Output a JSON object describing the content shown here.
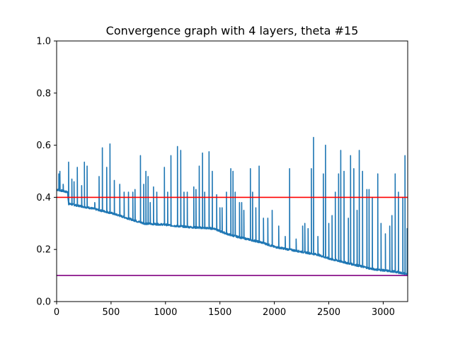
{
  "chart_data": {
    "type": "line",
    "title": "Convergence graph with 4 layers, theta #15",
    "xlabel": "",
    "ylabel": "",
    "xlim": [
      0,
      3225
    ],
    "ylim": [
      0.0,
      1.0
    ],
    "x_ticks": [
      0,
      500,
      1000,
      1500,
      2000,
      2500,
      3000
    ],
    "y_ticks": [
      0.0,
      0.2,
      0.4,
      0.6,
      0.8,
      1.0
    ],
    "x_tick_labels": [
      "0",
      "500",
      "1000",
      "1500",
      "2000",
      "2500",
      "3000"
    ],
    "y_tick_labels": [
      "0.0",
      "0.2",
      "0.4",
      "0.6",
      "0.8",
      "1.0"
    ],
    "grid": false,
    "legend": "none",
    "baseline": {
      "description": "stepwise-decreasing lower envelope of the convergence curve",
      "points": [
        [
          0,
          0.43
        ],
        [
          100,
          0.42
        ],
        [
          110,
          0.375
        ],
        [
          300,
          0.36
        ],
        [
          500,
          0.34
        ],
        [
          650,
          0.32
        ],
        [
          800,
          0.3
        ],
        [
          1000,
          0.295
        ],
        [
          1100,
          0.29
        ],
        [
          1250,
          0.285
        ],
        [
          1450,
          0.28
        ],
        [
          1500,
          0.27
        ],
        [
          1600,
          0.255
        ],
        [
          1700,
          0.245
        ],
        [
          1800,
          0.235
        ],
        [
          1900,
          0.225
        ],
        [
          2000,
          0.21
        ],
        [
          2200,
          0.195
        ],
        [
          2400,
          0.18
        ],
        [
          2500,
          0.165
        ],
        [
          2700,
          0.145
        ],
        [
          2900,
          0.125
        ],
        [
          3100,
          0.115
        ],
        [
          3225,
          0.105
        ]
      ]
    },
    "spikes": [
      [
        20,
        0.49
      ],
      [
        30,
        0.5
      ],
      [
        60,
        0.45
      ],
      [
        110,
        0.535
      ],
      [
        140,
        0.47
      ],
      [
        160,
        0.46
      ],
      [
        190,
        0.515
      ],
      [
        230,
        0.445
      ],
      [
        255,
        0.535
      ],
      [
        280,
        0.52
      ],
      [
        350,
        0.38
      ],
      [
        390,
        0.48
      ],
      [
        420,
        0.59
      ],
      [
        460,
        0.515
      ],
      [
        490,
        0.605
      ],
      [
        530,
        0.465
      ],
      [
        580,
        0.45
      ],
      [
        620,
        0.42
      ],
      [
        660,
        0.42
      ],
      [
        700,
        0.42
      ],
      [
        720,
        0.43
      ],
      [
        770,
        0.56
      ],
      [
        800,
        0.45
      ],
      [
        820,
        0.5
      ],
      [
        840,
        0.48
      ],
      [
        860,
        0.38
      ],
      [
        890,
        0.44
      ],
      [
        920,
        0.42
      ],
      [
        990,
        0.515
      ],
      [
        1020,
        0.42
      ],
      [
        1050,
        0.56
      ],
      [
        1110,
        0.595
      ],
      [
        1140,
        0.58
      ],
      [
        1170,
        0.42
      ],
      [
        1200,
        0.42
      ],
      [
        1260,
        0.44
      ],
      [
        1280,
        0.43
      ],
      [
        1310,
        0.52
      ],
      [
        1340,
        0.57
      ],
      [
        1360,
        0.42
      ],
      [
        1400,
        0.575
      ],
      [
        1430,
        0.5
      ],
      [
        1470,
        0.41
      ],
      [
        1500,
        0.36
      ],
      [
        1520,
        0.36
      ],
      [
        1560,
        0.42
      ],
      [
        1600,
        0.51
      ],
      [
        1620,
        0.5
      ],
      [
        1640,
        0.42
      ],
      [
        1680,
        0.38
      ],
      [
        1700,
        0.38
      ],
      [
        1720,
        0.35
      ],
      [
        1780,
        0.51
      ],
      [
        1800,
        0.42
      ],
      [
        1830,
        0.36
      ],
      [
        1860,
        0.52
      ],
      [
        1900,
        0.32
      ],
      [
        1940,
        0.32
      ],
      [
        1980,
        0.35
      ],
      [
        2040,
        0.29
      ],
      [
        2100,
        0.25
      ],
      [
        2140,
        0.51
      ],
      [
        2200,
        0.24
      ],
      [
        2260,
        0.29
      ],
      [
        2280,
        0.3
      ],
      [
        2310,
        0.28
      ],
      [
        2340,
        0.51
      ],
      [
        2360,
        0.63
      ],
      [
        2400,
        0.25
      ],
      [
        2450,
        0.49
      ],
      [
        2470,
        0.6
      ],
      [
        2500,
        0.3
      ],
      [
        2530,
        0.33
      ],
      [
        2560,
        0.42
      ],
      [
        2590,
        0.49
      ],
      [
        2610,
        0.58
      ],
      [
        2640,
        0.5
      ],
      [
        2680,
        0.32
      ],
      [
        2700,
        0.56
      ],
      [
        2730,
        0.51
      ],
      [
        2760,
        0.35
      ],
      [
        2780,
        0.58
      ],
      [
        2810,
        0.5
      ],
      [
        2850,
        0.43
      ],
      [
        2870,
        0.43
      ],
      [
        2900,
        0.4
      ],
      [
        2950,
        0.49
      ],
      [
        2980,
        0.3
      ],
      [
        3020,
        0.26
      ],
      [
        3060,
        0.29
      ],
      [
        3080,
        0.33
      ],
      [
        3110,
        0.49
      ],
      [
        3140,
        0.42
      ],
      [
        3180,
        0.4
      ],
      [
        3200,
        0.56
      ],
      [
        3220,
        0.28
      ]
    ],
    "series": [
      {
        "color": "#1f77b4"
      }
    ],
    "reference_lines": [
      {
        "y": 0.4,
        "color": "#ff0000"
      },
      {
        "y": 0.1,
        "color": "#800080"
      }
    ]
  }
}
